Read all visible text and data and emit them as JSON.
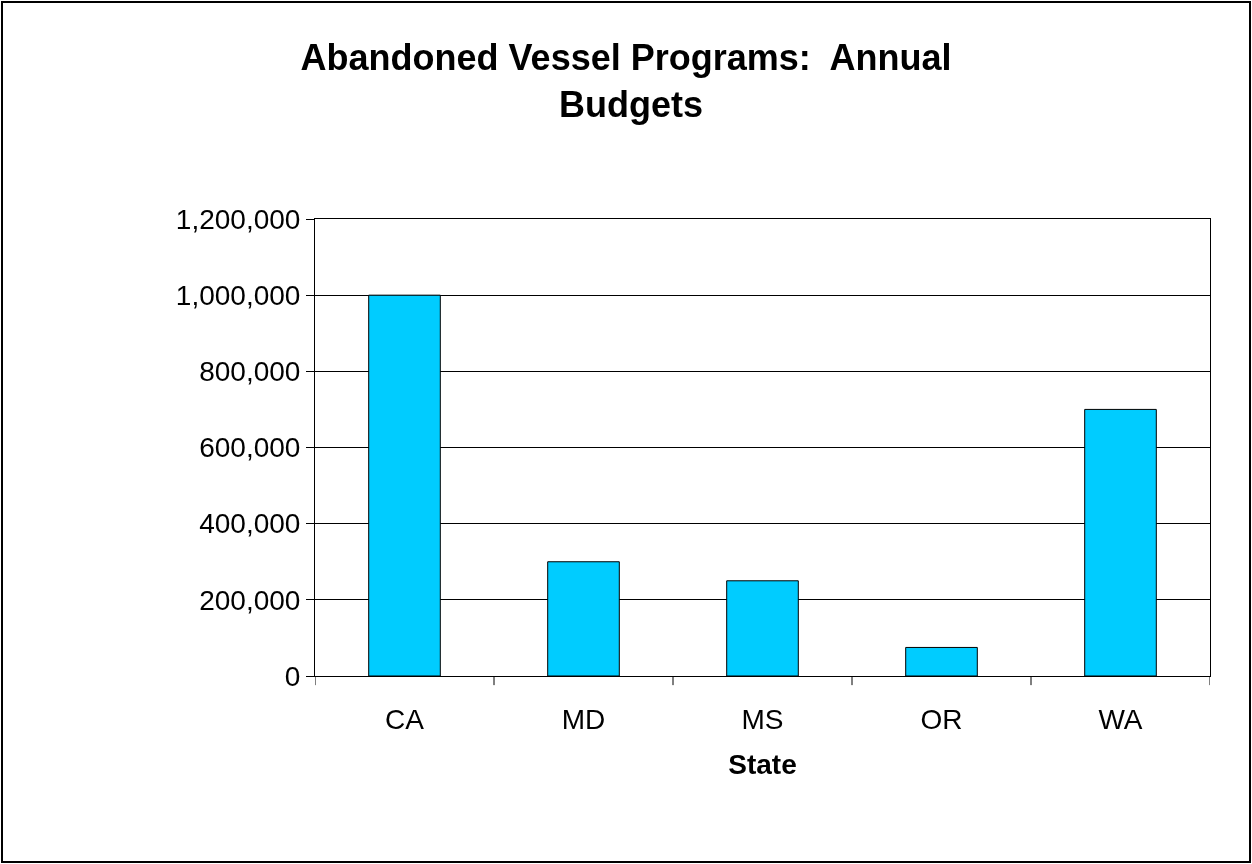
{
  "chart_data": {
    "type": "bar",
    "title": "Abandoned Vessel Programs:  Annual Budgets",
    "xlabel": "State",
    "categories": [
      "CA",
      "MD",
      "MS",
      "OR",
      "WA"
    ],
    "values": [
      1000000,
      300000,
      250000,
      75000,
      700000
    ],
    "color": "#00ccff",
    "ylim": [
      0,
      1200000
    ],
    "yticks": [
      {
        "value": 0,
        "label": "0"
      },
      {
        "value": 200000,
        "label": "200,000"
      },
      {
        "value": 400000,
        "label": "400,000"
      },
      {
        "value": 600000,
        "label": "600,000"
      },
      {
        "value": 800000,
        "label": "800,000"
      },
      {
        "value": 1000000,
        "label": "1,000,000"
      },
      {
        "value": 1200000,
        "label": "1,200,000"
      }
    ],
    "grid": "y"
  }
}
